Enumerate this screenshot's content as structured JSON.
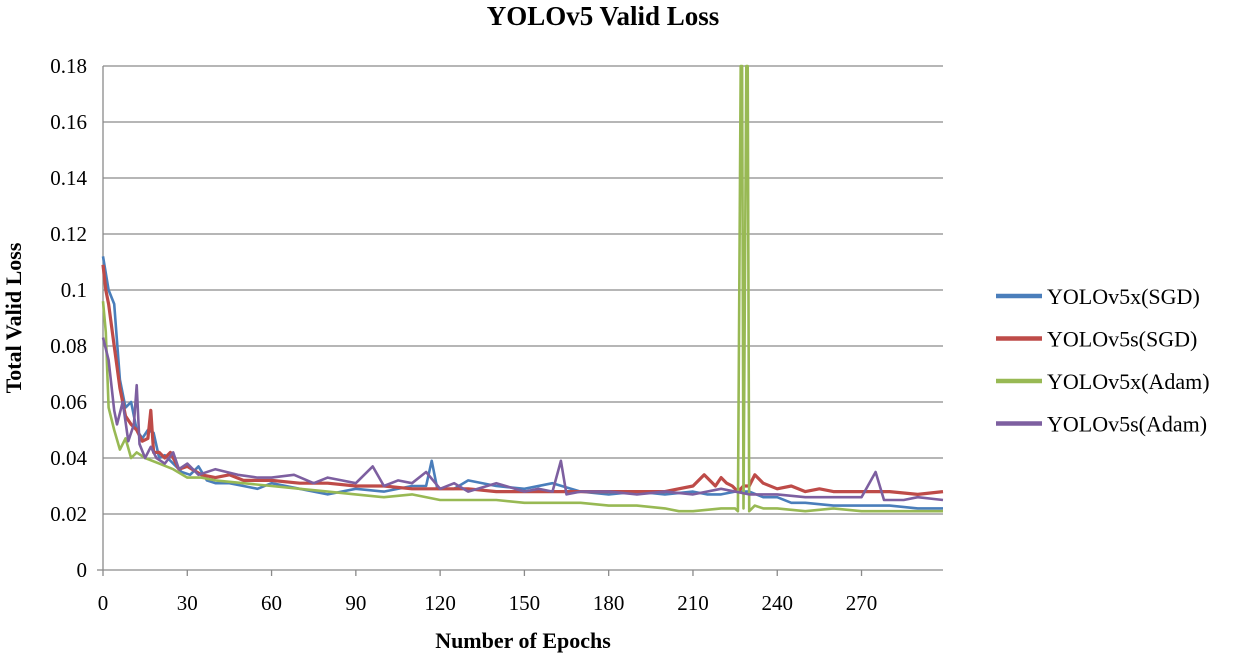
{
  "chart_data": {
    "type": "line",
    "title": "YOLOv5 Valid Loss",
    "xlabel": "Number of Epochs",
    "ylabel": "Total Valid Loss",
    "xlim": [
      0,
      299
    ],
    "ylim": [
      0,
      0.18
    ],
    "xticks": [
      0,
      30,
      60,
      90,
      120,
      150,
      180,
      210,
      240,
      270
    ],
    "xtick_labels": [
      "0",
      "30",
      "60",
      "90",
      "120",
      "150",
      "180",
      "210",
      "240",
      "270"
    ],
    "yticks": [
      0,
      0.02,
      0.04,
      0.06,
      0.08,
      0.1,
      0.12,
      0.14,
      0.16,
      0.18
    ],
    "ytick_labels": [
      "0",
      "0.02",
      "0.04",
      "0.06",
      "0.08",
      "0.1",
      "0.12",
      "0.14",
      "0.16",
      "0.18"
    ],
    "grid": "horizontal",
    "legend": "right",
    "series": [
      {
        "name": "YOLOv5x(SGD)",
        "color": "#4a7ebb",
        "x": [
          0,
          2,
          4,
          6,
          8,
          10,
          12,
          14,
          16,
          18,
          20,
          22,
          25,
          28,
          31,
          34,
          37,
          40,
          45,
          50,
          55,
          60,
          70,
          80,
          90,
          100,
          110,
          115,
          117,
          119,
          125,
          130,
          140,
          150,
          160,
          170,
          180,
          190,
          200,
          210,
          215,
          220,
          225,
          230,
          235,
          240,
          245,
          250,
          260,
          270,
          280,
          290,
          299
        ],
        "y": [
          0.112,
          0.1,
          0.095,
          0.068,
          0.058,
          0.06,
          0.05,
          0.047,
          0.05,
          0.049,
          0.04,
          0.041,
          0.038,
          0.035,
          0.034,
          0.037,
          0.032,
          0.031,
          0.031,
          0.03,
          0.029,
          0.031,
          0.029,
          0.027,
          0.029,
          0.028,
          0.03,
          0.03,
          0.039,
          0.029,
          0.029,
          0.032,
          0.03,
          0.029,
          0.031,
          0.028,
          0.027,
          0.028,
          0.027,
          0.028,
          0.027,
          0.027,
          0.028,
          0.028,
          0.026,
          0.026,
          0.024,
          0.024,
          0.023,
          0.023,
          0.023,
          0.022,
          0.022
        ]
      },
      {
        "name": "YOLOv5s(SGD)",
        "color": "#be4b48",
        "x": [
          0,
          1,
          2,
          4,
          6,
          8,
          10,
          12,
          14,
          16,
          17,
          18,
          20,
          22,
          24,
          27,
          30,
          35,
          40,
          45,
          50,
          60,
          70,
          80,
          90,
          100,
          110,
          120,
          130,
          140,
          150,
          160,
          170,
          180,
          190,
          200,
          210,
          214,
          216,
          218,
          220,
          222,
          224,
          226,
          228,
          230,
          232,
          235,
          240,
          245,
          250,
          255,
          260,
          270,
          280,
          290,
          299
        ],
        "y": [
          0.109,
          0.1,
          0.095,
          0.08,
          0.065,
          0.055,
          0.052,
          0.05,
          0.046,
          0.047,
          0.057,
          0.042,
          0.042,
          0.04,
          0.042,
          0.036,
          0.037,
          0.034,
          0.033,
          0.034,
          0.032,
          0.032,
          0.031,
          0.031,
          0.03,
          0.03,
          0.029,
          0.029,
          0.029,
          0.028,
          0.028,
          0.028,
          0.028,
          0.028,
          0.028,
          0.028,
          0.03,
          0.034,
          0.032,
          0.03,
          0.033,
          0.031,
          0.03,
          0.028,
          0.03,
          0.03,
          0.034,
          0.031,
          0.029,
          0.03,
          0.028,
          0.029,
          0.028,
          0.028,
          0.028,
          0.027,
          0.028
        ]
      },
      {
        "name": "YOLOv5x(Adam)",
        "color": "#98b954",
        "x": [
          0,
          1,
          2,
          4,
          6,
          8,
          10,
          12,
          15,
          20,
          25,
          30,
          35,
          40,
          50,
          60,
          70,
          80,
          90,
          100,
          110,
          120,
          130,
          140,
          150,
          160,
          170,
          180,
          190,
          200,
          205,
          210,
          220,
          225,
          226,
          227,
          227.5,
          228,
          229,
          229.5,
          230,
          232,
          235,
          240,
          250,
          260,
          270,
          280,
          290,
          299
        ],
        "y": [
          0.096,
          0.085,
          0.058,
          0.05,
          0.043,
          0.047,
          0.04,
          0.042,
          0.04,
          0.038,
          0.036,
          0.033,
          0.033,
          0.032,
          0.031,
          0.03,
          0.029,
          0.028,
          0.027,
          0.026,
          0.027,
          0.025,
          0.025,
          0.025,
          0.024,
          0.024,
          0.024,
          0.023,
          0.023,
          0.022,
          0.021,
          0.021,
          0.022,
          0.022,
          0.021,
          0.18,
          0.18,
          0.022,
          0.18,
          0.18,
          0.021,
          0.023,
          0.022,
          0.022,
          0.021,
          0.022,
          0.021,
          0.021,
          0.021,
          0.021
        ]
      },
      {
        "name": "YOLOv5s(Adam)",
        "color": "#7d5fa0",
        "x": [
          0,
          2,
          4,
          5,
          7,
          9,
          11,
          12,
          13,
          15,
          17,
          19,
          22,
          25,
          27,
          30,
          34,
          40,
          48,
          55,
          60,
          68,
          75,
          80,
          85,
          90,
          96,
          100,
          105,
          110,
          115,
          120,
          125,
          130,
          140,
          150,
          155,
          160,
          163,
          165,
          170,
          180,
          190,
          200,
          210,
          220,
          230,
          240,
          250,
          260,
          270,
          275,
          278,
          285,
          290,
          299
        ],
        "y": [
          0.083,
          0.075,
          0.057,
          0.052,
          0.06,
          0.046,
          0.052,
          0.066,
          0.045,
          0.04,
          0.044,
          0.04,
          0.038,
          0.042,
          0.036,
          0.038,
          0.034,
          0.036,
          0.034,
          0.033,
          0.033,
          0.034,
          0.031,
          0.033,
          0.032,
          0.031,
          0.037,
          0.03,
          0.032,
          0.031,
          0.035,
          0.029,
          0.031,
          0.028,
          0.031,
          0.028,
          0.029,
          0.028,
          0.039,
          0.027,
          0.028,
          0.028,
          0.027,
          0.028,
          0.027,
          0.029,
          0.027,
          0.027,
          0.026,
          0.026,
          0.026,
          0.035,
          0.025,
          0.025,
          0.026,
          0.025
        ]
      }
    ]
  }
}
